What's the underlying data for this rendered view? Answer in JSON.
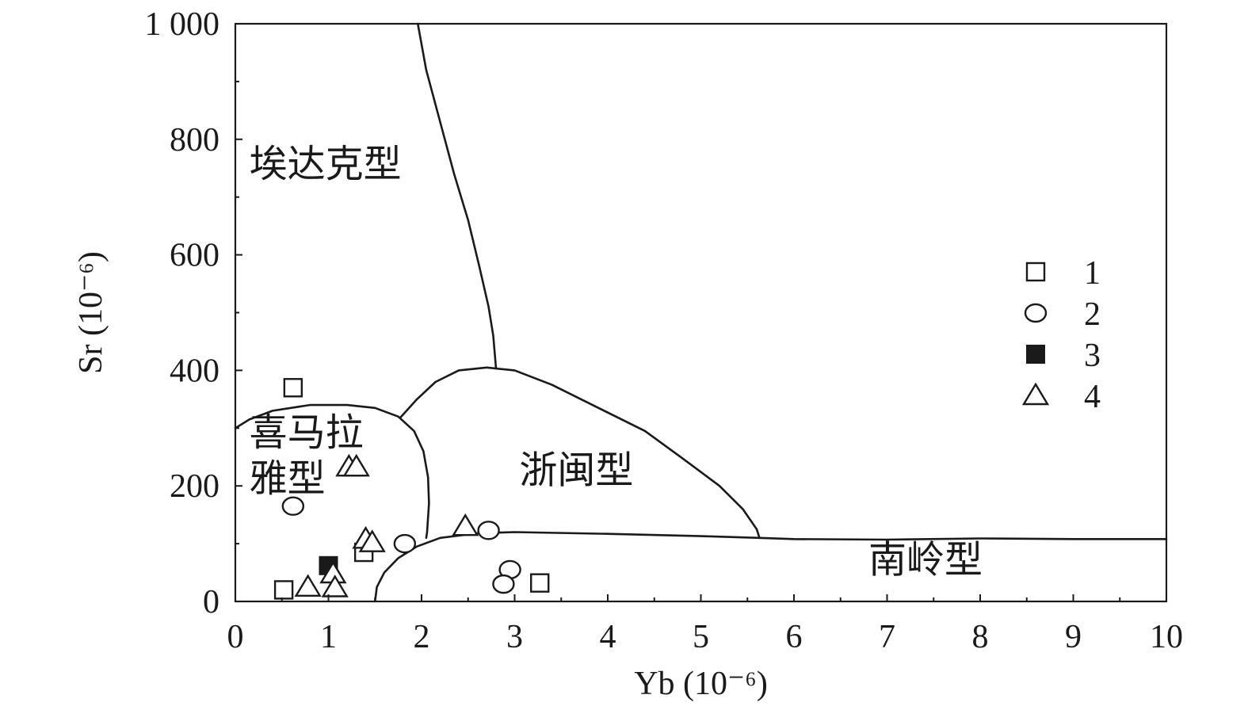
{
  "chart_data": {
    "type": "scatter",
    "xlabel": "Yb (10⁻⁶)",
    "ylabel": "Sr (10⁻⁶)",
    "xlim": [
      0,
      10
    ],
    "ylim": [
      0,
      1000
    ],
    "x_ticks": [
      "0",
      "1",
      "2",
      "3",
      "4",
      "5",
      "6",
      "7",
      "8",
      "9",
      "10"
    ],
    "y_ticks": [
      "0",
      "200",
      "400",
      "600",
      "800",
      "1 000"
    ],
    "grid": false,
    "legend_position": "right",
    "regions": [
      {
        "label_lines": [
          "埃达克型"
        ],
        "anchor": [
          0.15,
          735
        ]
      },
      {
        "label_lines": [
          "喜马拉",
          "雅型"
        ],
        "anchor": [
          0.15,
          270
        ]
      },
      {
        "label_lines": [
          "浙闽型"
        ],
        "anchor": [
          3.05,
          205
        ]
      },
      {
        "label_lines": [
          "南岭型"
        ],
        "anchor": [
          6.8,
          50
        ]
      }
    ],
    "boundaries": [
      {
        "name": "adakite-right",
        "points": [
          [
            1.96,
            1000
          ],
          [
            2.05,
            920
          ],
          [
            2.2,
            830
          ],
          [
            2.35,
            740
          ],
          [
            2.5,
            660
          ],
          [
            2.62,
            580
          ],
          [
            2.72,
            510
          ],
          [
            2.77,
            460
          ],
          [
            2.8,
            403
          ]
        ]
      },
      {
        "name": "himalaya-top",
        "points": [
          [
            0,
            300
          ],
          [
            0.15,
            315
          ],
          [
            0.4,
            330
          ],
          [
            0.8,
            340
          ],
          [
            1.2,
            340
          ],
          [
            1.5,
            335
          ],
          [
            1.75,
            320
          ],
          [
            1.92,
            295
          ],
          [
            2.02,
            260
          ],
          [
            2.07,
            215
          ],
          [
            2.08,
            170
          ],
          [
            2.06,
            120
          ],
          [
            2.05,
            110
          ]
        ]
      },
      {
        "name": "zhemin-top",
        "points": [
          [
            1.77,
            318
          ],
          [
            1.95,
            350
          ],
          [
            2.15,
            380
          ],
          [
            2.4,
            400
          ],
          [
            2.7,
            405
          ],
          [
            3.0,
            400
          ],
          [
            3.4,
            375
          ],
          [
            3.9,
            335
          ],
          [
            4.4,
            295
          ],
          [
            4.8,
            248
          ],
          [
            5.2,
            200
          ],
          [
            5.45,
            160
          ],
          [
            5.6,
            125
          ],
          [
            5.63,
            110
          ]
        ]
      },
      {
        "name": "nanling-top",
        "points": [
          [
            1.5,
            0
          ],
          [
            1.52,
            25
          ],
          [
            1.6,
            50
          ],
          [
            1.75,
            75
          ],
          [
            1.95,
            95
          ],
          [
            2.2,
            110
          ],
          [
            2.6,
            118
          ],
          [
            3.0,
            120
          ],
          [
            4.0,
            117
          ],
          [
            5.0,
            113
          ],
          [
            5.63,
            110
          ],
          [
            6.0,
            108
          ],
          [
            7.0,
            107
          ],
          [
            8.0,
            109
          ],
          [
            9.0,
            108
          ],
          [
            10,
            108
          ]
        ]
      }
    ],
    "series": [
      {
        "name": "1",
        "marker": "open-square",
        "points": [
          [
            0.62,
            370
          ],
          [
            0.52,
            20
          ],
          [
            1.38,
            85
          ],
          [
            3.27,
            32
          ]
        ]
      },
      {
        "name": "2",
        "marker": "open-circle",
        "points": [
          [
            0.62,
            165
          ],
          [
            1.82,
            100
          ],
          [
            2.72,
            123
          ],
          [
            2.95,
            55
          ],
          [
            2.88,
            30
          ]
        ]
      },
      {
        "name": "3",
        "marker": "filled-square",
        "points": [
          [
            1.0,
            62
          ]
        ]
      },
      {
        "name": "4",
        "marker": "open-triangle",
        "points": [
          [
            1.22,
            233
          ],
          [
            1.3,
            233
          ],
          [
            1.4,
            108
          ],
          [
            1.47,
            102
          ],
          [
            1.05,
            48
          ],
          [
            0.78,
            25
          ],
          [
            1.07,
            24
          ],
          [
            2.47,
            130
          ]
        ]
      }
    ]
  }
}
